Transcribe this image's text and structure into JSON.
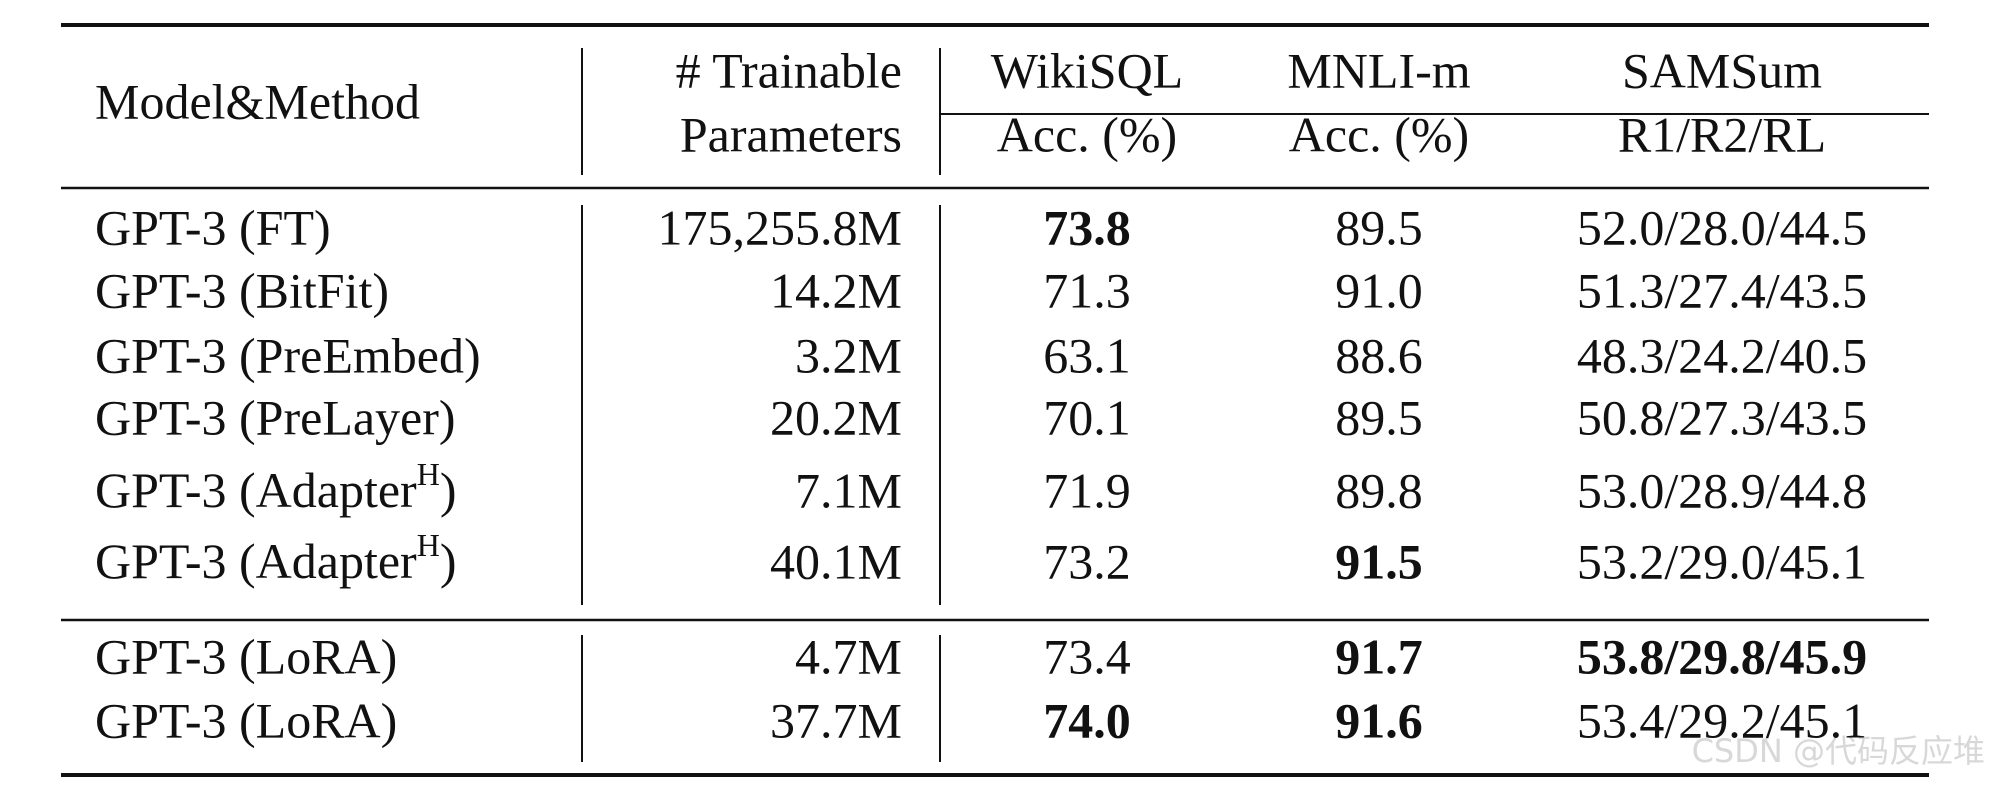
{
  "table": {
    "header": {
      "model": "Model&Method",
      "params": [
        "# Trainable",
        "Parameters"
      ],
      "wikisql": [
        "WikiSQL",
        "Acc. (%)"
      ],
      "mnli": [
        "MNLI-m",
        "Acc. (%)"
      ],
      "samsum": [
        "SAMSum",
        "R1/R2/RL"
      ]
    },
    "rows": [
      [
        "GPT-3 (FT)",
        "175,255.8M",
        "73.8",
        "89.5",
        "52.0/28.0/44.5"
      ],
      [
        "GPT-3 (BitFit)",
        "14.2M",
        "71.3",
        "91.0",
        "51.3/27.4/43.5"
      ],
      [
        "GPT-3 (PreEmbed)",
        "3.2M",
        "63.1",
        "88.6",
        "48.3/24.2/40.5"
      ],
      [
        "GPT-3 (PreLayer)",
        "20.2M",
        "70.1",
        "89.5",
        "50.8/27.3/43.5"
      ],
      [
        [
          "GPT-3 (Adapter",
          "H",
          ")"
        ],
        "7.1M",
        "71.9",
        "89.8",
        "53.0/28.9/44.8"
      ],
      [
        [
          "GPT-3 (Adapter",
          "H",
          ")"
        ],
        "40.1M",
        "73.2",
        "91.5",
        "53.2/29.0/45.1"
      ],
      [
        "GPT-3 (LoRA)",
        "4.7M",
        "73.4",
        "91.7",
        "53.8/29.8/45.9"
      ],
      [
        "GPT-3 (LoRA)",
        "37.7M",
        "74.0",
        "91.6",
        "53.4/29.2/45.1"
      ]
    ],
    "bold": [
      [
        0,
        2
      ],
      [
        5,
        3
      ],
      [
        6,
        3
      ],
      [
        6,
        4
      ],
      [
        7,
        2
      ],
      [
        7,
        3
      ]
    ]
  },
  "watermark": "CSDN @代码反应堆"
}
